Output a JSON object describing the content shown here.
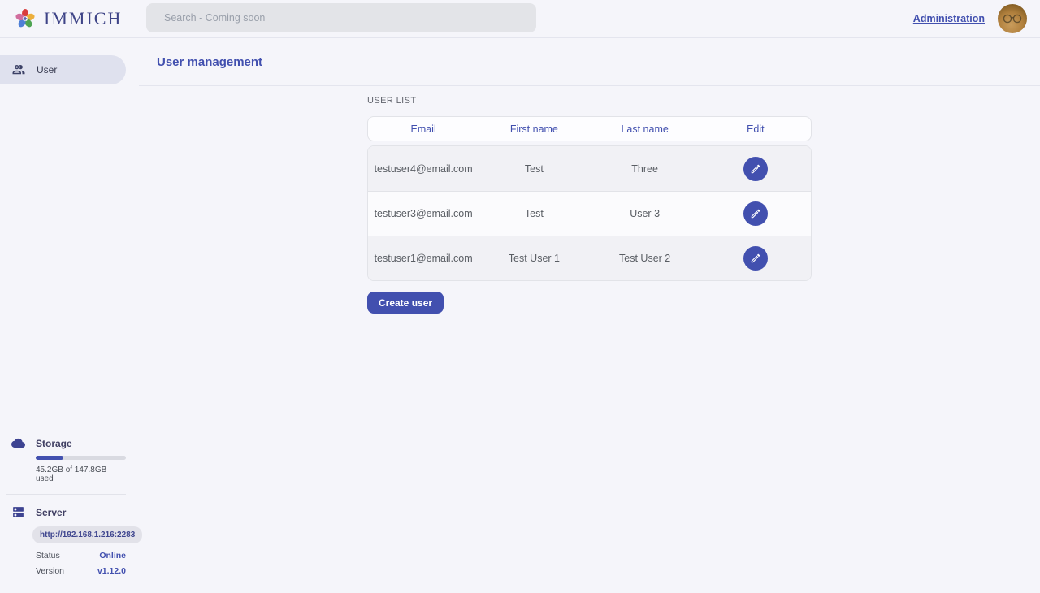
{
  "brand": {
    "name": "IMMICH"
  },
  "header": {
    "search_placeholder": "Search - Coming soon",
    "admin_link": "Administration"
  },
  "sidebar": {
    "items": [
      {
        "label": "User",
        "icon": "users-icon",
        "active": true
      }
    ],
    "storage": {
      "title": "Storage",
      "usage_text": "45.2GB of 147.8GB used",
      "percent_used": 30.6
    },
    "server": {
      "title": "Server",
      "url": "http://192.168.1.216:2283",
      "status_label": "Status",
      "status_value": "Online",
      "version_label": "Version",
      "version_value": "v1.12.0"
    }
  },
  "page": {
    "title": "User management",
    "section_label": "USER LIST",
    "table": {
      "columns": [
        "Email",
        "First name",
        "Last name",
        "Edit"
      ],
      "rows": [
        {
          "email": "testuser4@email.com",
          "first_name": "Test",
          "last_name": "Three"
        },
        {
          "email": "testuser3@email.com",
          "first_name": "Test",
          "last_name": "User 3"
        },
        {
          "email": "testuser1@email.com",
          "first_name": "Test User 1",
          "last_name": "Test User 2"
        }
      ]
    },
    "create_button": "Create user"
  },
  "icons": {
    "logo": "immich-flower-icon",
    "sidebar_user": "users-icon",
    "storage": "cloud-icon",
    "server": "server-icon",
    "edit": "pencil-icon"
  },
  "colors": {
    "primary": "#4250af",
    "page_background": "#f5f5fa",
    "active_nav_background": "#dfe1ee",
    "search_background": "#e3e4e8",
    "row_stripe": "#f1f1f5",
    "online_status": "#4250af"
  }
}
